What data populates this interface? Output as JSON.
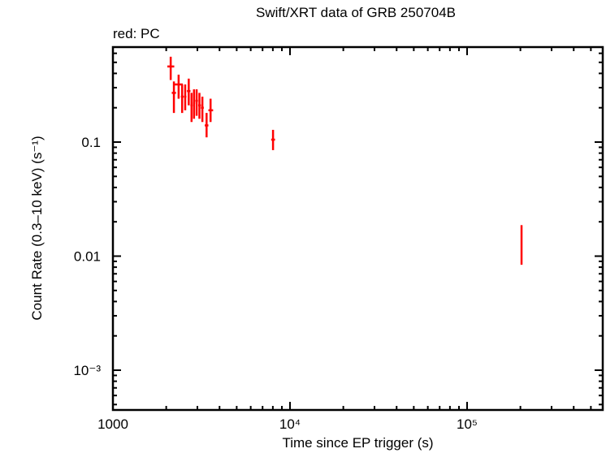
{
  "chart_data": {
    "type": "scatter",
    "title": "Swift/XRT data of GRB 250704B",
    "subtitle": "red: PC",
    "xlabel": "Time since EP trigger (s)",
    "ylabel": "Count Rate (0.3–10 keV) (s⁻¹)",
    "xscale": "log",
    "yscale": "log",
    "xlim": [
      1000,
      560000
    ],
    "ylim": [
      0.00045,
      0.8
    ],
    "x_tick_labels": [
      "1000",
      "10⁴",
      "10⁵"
    ],
    "y_tick_labels": [
      "0.1",
      "0.01",
      "10⁻³"
    ],
    "grid": false,
    "legend": "red: PC",
    "series": [
      {
        "name": "PC",
        "color": "#ff0000",
        "points": [
          {
            "t": 2120,
            "t_lo": 2030,
            "t_hi": 2220,
            "rate": 0.46,
            "rate_lo": 0.35,
            "rate_hi": 0.56
          },
          {
            "t": 2210,
            "t_lo": 2150,
            "t_hi": 2270,
            "rate": 0.27,
            "rate_lo": 0.18,
            "rate_hi": 0.34
          },
          {
            "t": 2350,
            "t_lo": 2230,
            "t_hi": 2480,
            "rate": 0.32,
            "rate_lo": 0.24,
            "rate_hi": 0.39
          },
          {
            "t": 2460,
            "t_lo": 2420,
            "t_hi": 2510,
            "rate": 0.25,
            "rate_lo": 0.18,
            "rate_hi": 0.32
          },
          {
            "t": 2560,
            "t_lo": 2520,
            "t_hi": 2600,
            "rate": 0.25,
            "rate_lo": 0.19,
            "rate_hi": 0.32
          },
          {
            "t": 2680,
            "t_lo": 2620,
            "t_hi": 2740,
            "rate": 0.28,
            "rate_lo": 0.21,
            "rate_hi": 0.36
          },
          {
            "t": 2780,
            "t_lo": 2740,
            "t_hi": 2820,
            "rate": 0.21,
            "rate_lo": 0.15,
            "rate_hi": 0.27
          },
          {
            "t": 2870,
            "t_lo": 2830,
            "t_hi": 2910,
            "rate": 0.22,
            "rate_lo": 0.16,
            "rate_hi": 0.29
          },
          {
            "t": 2970,
            "t_lo": 2920,
            "t_hi": 3020,
            "rate": 0.23,
            "rate_lo": 0.17,
            "rate_hi": 0.29
          },
          {
            "t": 3080,
            "t_lo": 3030,
            "t_hi": 3140,
            "rate": 0.21,
            "rate_lo": 0.16,
            "rate_hi": 0.27
          },
          {
            "t": 3200,
            "t_lo": 3140,
            "t_hi": 3260,
            "rate": 0.2,
            "rate_lo": 0.15,
            "rate_hi": 0.25
          },
          {
            "t": 3380,
            "t_lo": 3300,
            "t_hi": 3460,
            "rate": 0.14,
            "rate_lo": 0.11,
            "rate_hi": 0.18
          },
          {
            "t": 3560,
            "t_lo": 3460,
            "t_hi": 3680,
            "rate": 0.19,
            "rate_lo": 0.15,
            "rate_hi": 0.24
          },
          {
            "t": 8020,
            "t_lo": 7830,
            "t_hi": 8230,
            "rate": 0.105,
            "rate_lo": 0.085,
            "rate_hi": 0.128
          },
          {
            "t": 203000,
            "t_lo": 202000,
            "t_hi": 204000,
            "rate": 0.0128,
            "rate_lo": 0.0084,
            "rate_hi": 0.0187
          }
        ]
      }
    ]
  },
  "plot": {
    "title": "Swift/XRT data of GRB 250704B",
    "subtitle": "red: PC",
    "xlabel": "Time since EP trigger (s)",
    "ylabel": "Count Rate (0.3–10 keV) (s⁻¹)"
  }
}
